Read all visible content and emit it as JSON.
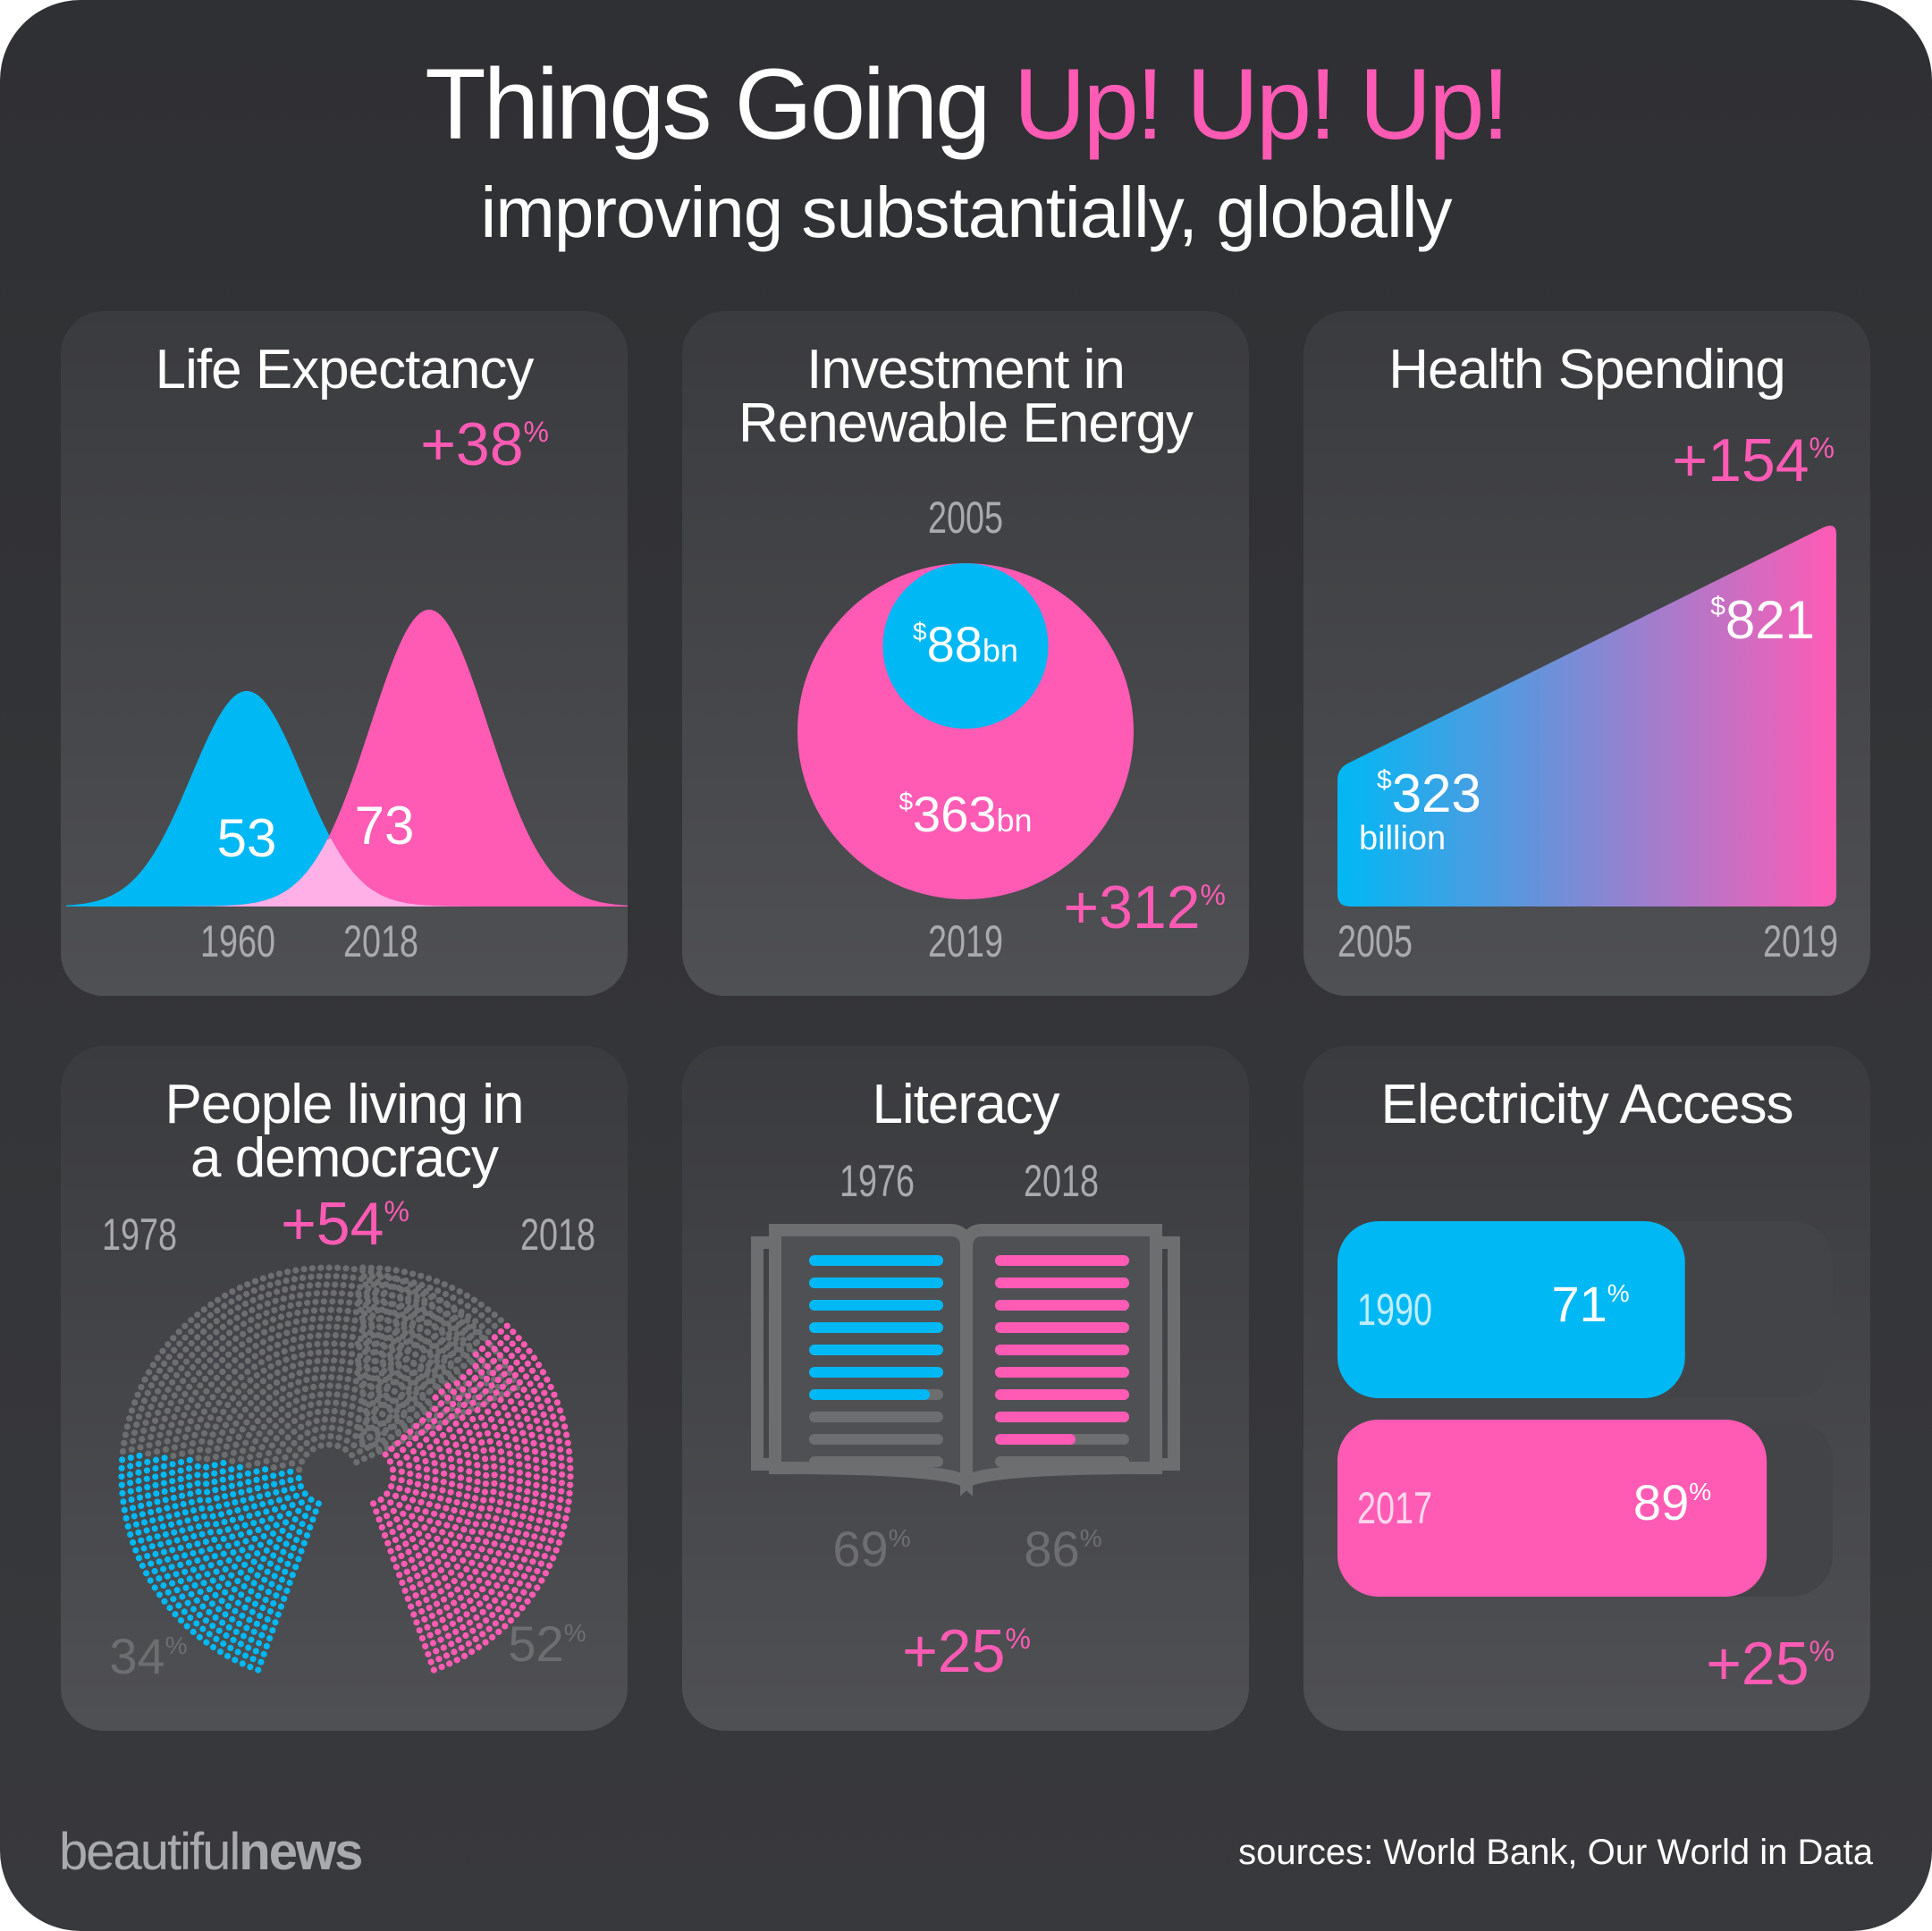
{
  "header": {
    "title_main": "Things Going",
    "title_accent": "Up! Up! Up!",
    "subtitle": "improving substantially, globally"
  },
  "colors": {
    "blue": "#00b8f4",
    "pink": "#ff5bb5",
    "grey": "#6d6e70",
    "label_grey": "#a9aaad"
  },
  "footer": {
    "brand_light": "beautiful",
    "brand_bold": "news",
    "sources": "sources: World Bank, Our World in Data"
  },
  "chart_data": [
    {
      "id": "life",
      "type": "area",
      "title_lines": [
        "Life Expectancy"
      ],
      "series": [
        {
          "name": "1960",
          "value": 53,
          "value_label": "53",
          "color": "blue"
        },
        {
          "name": "2018",
          "value": 73,
          "value_label": "73",
          "color": "pink"
        }
      ],
      "change": "+38",
      "change_unit": "%"
    },
    {
      "id": "renewable",
      "type": "bubble",
      "title_lines": [
        "Investment in",
        "Renewable Energy"
      ],
      "series": [
        {
          "name": "2005",
          "value": 88,
          "currency": "$",
          "value_label": "88",
          "unit": "bn",
          "color": "blue"
        },
        {
          "name": "2019",
          "value": 363,
          "currency": "$",
          "value_label": "363",
          "unit": "bn",
          "color": "pink"
        }
      ],
      "change": "+312",
      "change_unit": "%"
    },
    {
      "id": "health",
      "type": "area",
      "title_lines": [
        "Health Spending"
      ],
      "x": [
        "2005",
        "2019"
      ],
      "values": [
        323,
        821
      ],
      "start_label": {
        "currency": "$",
        "value": "323",
        "unit": "billion"
      },
      "end_label": {
        "currency": "$",
        "value": "821"
      },
      "change": "+154",
      "change_unit": "%"
    },
    {
      "id": "democracy",
      "type": "pie",
      "title_lines": [
        "People living in",
        "a democracy"
      ],
      "series": [
        {
          "name": "1978",
          "value": 34,
          "value_label": "34",
          "color": "blue"
        },
        {
          "name": "2018",
          "value": 52,
          "value_label": "52",
          "color": "pink"
        }
      ],
      "change": "+54",
      "change_unit": "%"
    },
    {
      "id": "literacy",
      "type": "bar",
      "title_lines": [
        "Literacy"
      ],
      "series": [
        {
          "name": "1976",
          "value": 69,
          "value_label": "69",
          "color": "blue"
        },
        {
          "name": "2018",
          "value": 86,
          "value_label": "86",
          "color": "pink"
        }
      ],
      "change": "+25",
      "change_unit": "%"
    },
    {
      "id": "electricity",
      "type": "bar",
      "title_lines": [
        "Electricity Access"
      ],
      "series": [
        {
          "name": "1990",
          "value": 71,
          "value_label": "71",
          "color": "blue"
        },
        {
          "name": "2017",
          "value": 89,
          "value_label": "89",
          "color": "pink"
        }
      ],
      "change": "+25",
      "change_unit": "%"
    }
  ]
}
